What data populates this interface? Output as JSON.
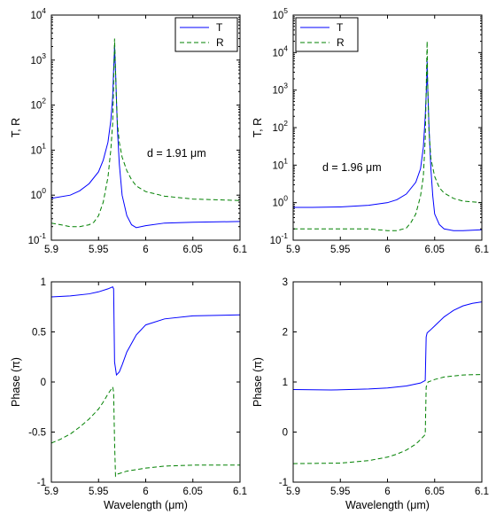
{
  "chart_data": [
    {
      "type": "line",
      "panel": "top-left",
      "yscale": "log",
      "xlim": [
        5.9,
        6.1
      ],
      "ylim": [
        0.1,
        10000
      ],
      "xticks": [
        "5.9",
        "5.95",
        "6",
        "6.05",
        "6.1"
      ],
      "ylabel": "T, R",
      "xlabel": "",
      "annotation": "d = 1.91 μm",
      "legend": "top-right",
      "series": [
        {
          "name": "T",
          "color": "#0000ff",
          "style": "solid",
          "points": [
            [
              5.9,
              0.85
            ],
            [
              5.92,
              1.0
            ],
            [
              5.93,
              1.25
            ],
            [
              5.94,
              1.8
            ],
            [
              5.95,
              3.3
            ],
            [
              5.955,
              6.0
            ],
            [
              5.96,
              15
            ],
            [
              5.963,
              45
            ],
            [
              5.965,
              150
            ],
            [
              5.966,
              600
            ],
            [
              5.967,
              2000
            ],
            [
              5.968,
              600
            ],
            [
              5.969,
              130
            ],
            [
              5.97,
              30
            ],
            [
              5.972,
              5
            ],
            [
              5.975,
              1.0
            ],
            [
              5.98,
              0.35
            ],
            [
              5.985,
              0.22
            ],
            [
              5.99,
              0.19
            ],
            [
              6.0,
              0.21
            ],
            [
              6.02,
              0.24
            ],
            [
              6.05,
              0.25
            ],
            [
              6.1,
              0.26
            ]
          ]
        },
        {
          "name": "R",
          "color": "#008000",
          "style": "dashed",
          "points": [
            [
              5.9,
              0.24
            ],
            [
              5.91,
              0.22
            ],
            [
              5.92,
              0.2
            ],
            [
              5.93,
              0.2
            ],
            [
              5.94,
              0.22
            ],
            [
              5.945,
              0.25
            ],
            [
              5.95,
              0.35
            ],
            [
              5.955,
              0.7
            ],
            [
              5.96,
              2.5
            ],
            [
              5.963,
              10
            ],
            [
              5.965,
              40
            ],
            [
              5.966,
              300
            ],
            [
              5.967,
              3000
            ],
            [
              5.968,
              600
            ],
            [
              5.969,
              130
            ],
            [
              5.97,
              40
            ],
            [
              5.972,
              15
            ],
            [
              5.975,
              7
            ],
            [
              5.98,
              3.5
            ],
            [
              5.985,
              2.2
            ],
            [
              5.99,
              1.6
            ],
            [
              6.0,
              1.2
            ],
            [
              6.02,
              0.95
            ],
            [
              6.05,
              0.82
            ],
            [
              6.1,
              0.76
            ]
          ]
        }
      ]
    },
    {
      "type": "line",
      "panel": "top-right",
      "yscale": "log",
      "xlim": [
        5.9,
        6.1
      ],
      "ylim": [
        0.1,
        100000
      ],
      "xticks": [
        "5.9",
        "5.95",
        "6",
        "6.05",
        "6.1"
      ],
      "ylabel": "T, R",
      "xlabel": "",
      "annotation": "d = 1.96 μm",
      "legend": "top-left",
      "series": [
        {
          "name": "T",
          "color": "#0000ff",
          "style": "solid",
          "points": [
            [
              5.9,
              0.75
            ],
            [
              5.92,
              0.75
            ],
            [
              5.95,
              0.77
            ],
            [
              5.98,
              0.85
            ],
            [
              6.0,
              1.0
            ],
            [
              6.01,
              1.2
            ],
            [
              6.02,
              1.7
            ],
            [
              6.03,
              3.5
            ],
            [
              6.035,
              8
            ],
            [
              6.038,
              30
            ],
            [
              6.04,
              200
            ],
            [
              6.0415,
              1500
            ],
            [
              6.042,
              6000
            ],
            [
              6.0425,
              1500
            ],
            [
              6.044,
              100
            ],
            [
              6.046,
              8
            ],
            [
              6.048,
              1.5
            ],
            [
              6.05,
              0.5
            ],
            [
              6.055,
              0.26
            ],
            [
              6.06,
              0.2
            ],
            [
              6.07,
              0.18
            ],
            [
              6.08,
              0.18
            ],
            [
              6.1,
              0.19
            ]
          ]
        },
        {
          "name": "R",
          "color": "#008000",
          "style": "dashed",
          "points": [
            [
              5.9,
              0.2
            ],
            [
              5.95,
              0.2
            ],
            [
              5.98,
              0.2
            ],
            [
              6.0,
              0.18
            ],
            [
              6.01,
              0.18
            ],
            [
              6.02,
              0.21
            ],
            [
              6.025,
              0.3
            ],
            [
              6.03,
              0.5
            ],
            [
              6.035,
              1.5
            ],
            [
              6.038,
              5
            ],
            [
              6.04,
              50
            ],
            [
              6.041,
              1000
            ],
            [
              6.042,
              20000
            ],
            [
              6.0425,
              2000
            ],
            [
              6.044,
              80
            ],
            [
              6.046,
              15
            ],
            [
              6.05,
              5
            ],
            [
              6.055,
              2.5
            ],
            [
              6.06,
              1.8
            ],
            [
              6.07,
              1.3
            ],
            [
              6.08,
              1.1
            ],
            [
              6.1,
              1.0
            ]
          ]
        }
      ]
    },
    {
      "type": "line",
      "panel": "bottom-left",
      "yscale": "linear",
      "xlim": [
        5.9,
        6.1
      ],
      "ylim": [
        -1,
        1
      ],
      "xticks": [
        "5.9",
        "5.95",
        "6",
        "6.05",
        "6.1"
      ],
      "yticks": [
        "-1",
        "-0.5",
        "0",
        "0.5",
        "1"
      ],
      "ylabel": "Phase (π)",
      "xlabel": "Wavelength (μm)",
      "series": [
        {
          "name": "T",
          "color": "#0000ff",
          "style": "solid",
          "points": [
            [
              5.9,
              0.85
            ],
            [
              5.92,
              0.86
            ],
            [
              5.94,
              0.88
            ],
            [
              5.95,
              0.9
            ],
            [
              5.96,
              0.93
            ],
            [
              5.965,
              0.95
            ],
            [
              5.966,
              0.93
            ],
            [
              5.967,
              0.2
            ],
            [
              5.969,
              0.07
            ],
            [
              5.972,
              0.1
            ],
            [
              5.975,
              0.17
            ],
            [
              5.98,
              0.3
            ],
            [
              5.99,
              0.47
            ],
            [
              6.0,
              0.57
            ],
            [
              6.02,
              0.63
            ],
            [
              6.05,
              0.66
            ],
            [
              6.1,
              0.67
            ]
          ]
        },
        {
          "name": "R",
          "color": "#008000",
          "style": "dashed",
          "points": [
            [
              5.9,
              -0.61
            ],
            [
              5.91,
              -0.57
            ],
            [
              5.92,
              -0.52
            ],
            [
              5.93,
              -0.45
            ],
            [
              5.94,
              -0.37
            ],
            [
              5.95,
              -0.27
            ],
            [
              5.955,
              -0.2
            ],
            [
              5.96,
              -0.12
            ],
            [
              5.965,
              -0.05
            ],
            [
              5.966,
              -0.1
            ],
            [
              5.967,
              -0.6
            ],
            [
              5.968,
              -0.94
            ],
            [
              5.97,
              -0.92
            ],
            [
              5.98,
              -0.89
            ],
            [
              6.0,
              -0.86
            ],
            [
              6.02,
              -0.84
            ],
            [
              6.05,
              -0.83
            ],
            [
              6.1,
              -0.83
            ]
          ]
        }
      ]
    },
    {
      "type": "line",
      "panel": "bottom-right",
      "yscale": "linear",
      "xlim": [
        5.9,
        6.1
      ],
      "ylim": [
        -1,
        3
      ],
      "xticks": [
        "5.9",
        "5.95",
        "6",
        "6.05",
        "6.1"
      ],
      "yticks": [
        "-1",
        "0",
        "1",
        "2",
        "3"
      ],
      "ylabel": "Phase (π)",
      "xlabel": "Wavelength (μm)",
      "series": [
        {
          "name": "T",
          "color": "#0000ff",
          "style": "solid",
          "points": [
            [
              5.9,
              0.85
            ],
            [
              5.94,
              0.84
            ],
            [
              5.98,
              0.86
            ],
            [
              6.0,
              0.88
            ],
            [
              6.02,
              0.92
            ],
            [
              6.035,
              0.98
            ],
            [
              6.04,
              1.03
            ],
            [
              6.041,
              1.9
            ],
            [
              6.042,
              1.98
            ],
            [
              6.045,
              2.03
            ],
            [
              6.05,
              2.12
            ],
            [
              6.06,
              2.3
            ],
            [
              6.07,
              2.43
            ],
            [
              6.08,
              2.52
            ],
            [
              6.09,
              2.57
            ],
            [
              6.1,
              2.6
            ]
          ]
        },
        {
          "name": "R",
          "color": "#008000",
          "style": "dashed",
          "points": [
            [
              5.9,
              -0.63
            ],
            [
              5.95,
              -0.62
            ],
            [
              5.98,
              -0.57
            ],
            [
              6.0,
              -0.5
            ],
            [
              6.01,
              -0.44
            ],
            [
              6.02,
              -0.36
            ],
            [
              6.03,
              -0.24
            ],
            [
              6.035,
              -0.15
            ],
            [
              6.04,
              -0.05
            ],
            [
              6.041,
              0.9
            ],
            [
              6.043,
              1.0
            ],
            [
              6.05,
              1.05
            ],
            [
              6.06,
              1.1
            ],
            [
              6.08,
              1.14
            ],
            [
              6.1,
              1.15
            ]
          ]
        }
      ]
    }
  ]
}
